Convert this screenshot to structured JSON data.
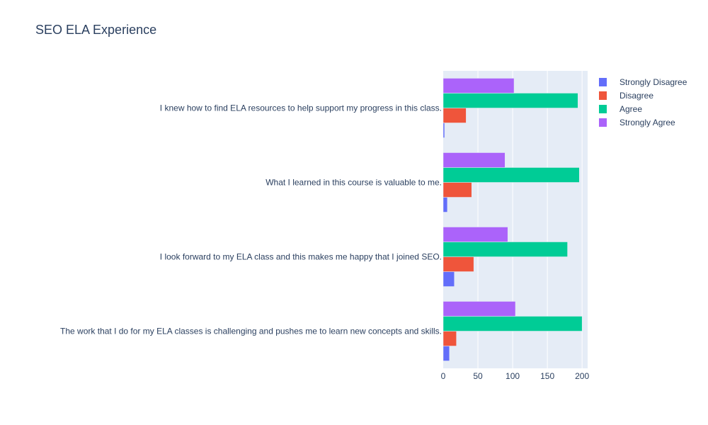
{
  "chart_data": {
    "type": "bar",
    "orientation": "horizontal",
    "barmode": "group",
    "title": "SEO ELA Experience",
    "xlabel": "",
    "ylabel": "",
    "xlim": [
      0,
      208
    ],
    "xticks": [
      0,
      50,
      100,
      150,
      200
    ],
    "grid": true,
    "legend_position": "top-right",
    "categories": [
      "I knew how to find ELA resources to help support my progress in this class.",
      "What I learned in this course is valuable to me.",
      "I look forward to my ELA class and this makes me happy that I joined SEO.",
      "The work that I do for my ELA classes is challenging and pushes me to learn new concepts and skills."
    ],
    "series": [
      {
        "name": "Strongly Disagree",
        "color": "#636efa",
        "values": [
          2,
          6,
          16,
          9
        ]
      },
      {
        "name": "Disagree",
        "color": "#ef553b",
        "values": [
          33,
          41,
          44,
          19
        ]
      },
      {
        "name": "Agree",
        "color": "#00cc96",
        "values": [
          194,
          196,
          179,
          200
        ]
      },
      {
        "name": "Strongly Agree",
        "color": "#ab63fa",
        "values": [
          102,
          89,
          93,
          104
        ]
      }
    ]
  }
}
